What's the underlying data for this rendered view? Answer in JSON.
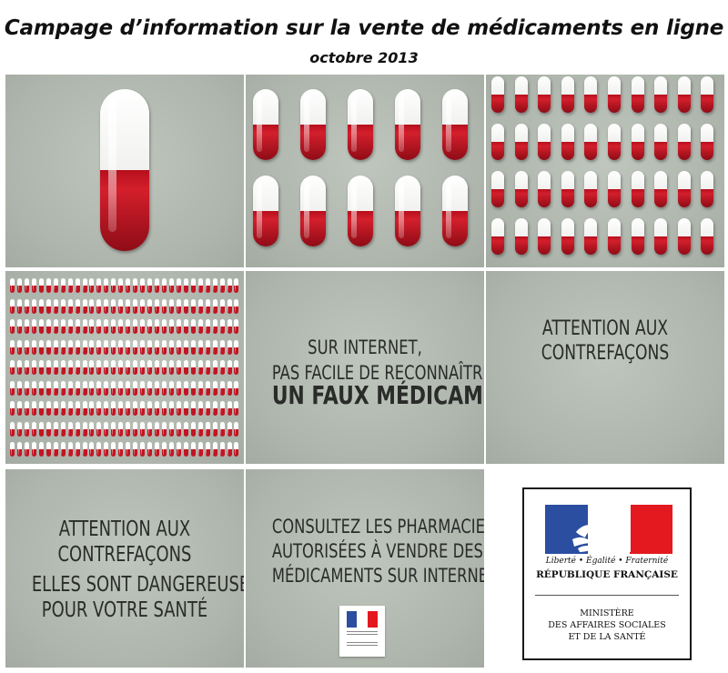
{
  "header": {
    "title": "Campage d’information sur la vente de médicaments en ligne",
    "subtitle": "octobre 2013"
  },
  "panels": {
    "faux_medicament": {
      "line1": "SUR INTERNET,",
      "line2": "PAS FACILE DE RECONNAÎTRE",
      "line3": "UN FAUX MÉDICAMENT"
    },
    "contrefacons": {
      "line1": "ATTENTION AUX",
      "line2": "CONTREFAÇONS"
    },
    "dangereuses": {
      "line1": "ATTENTION AUX",
      "line2": "CONTREFAÇONS",
      "line3": "ELLES SONT DANGEREUSES",
      "line4": "POUR VOTRE SANTÉ"
    },
    "pharmacies": {
      "line1": "CONSULTEZ LES PHARMACIES",
      "line2": "AUTORISÉES À VENDRE DES",
      "line3": "MÉDICAMENTS SUR INTERNET"
    }
  },
  "logo": {
    "motto": "Liberté • Égalité • Fraternité",
    "republic": "RÉPUBLIQUE FRANÇAISE",
    "ministry_line1": "MINISTÈRE",
    "ministry_line2": "DES AFFAIRES SOCIALES",
    "ministry_line3": "ET DE LA SANTÉ"
  },
  "colors": {
    "capsule_red": "#c21523",
    "panel_bg": "#b3bab1",
    "flag_blue": "#2b4ea0",
    "flag_red": "#e3191f"
  },
  "capsule_grids": {
    "panel2": {
      "cols": 5,
      "rows": 2
    },
    "panel3": {
      "cols": 10,
      "rows": 4
    },
    "panel4": {
      "cols": 32,
      "rows": 9
    }
  }
}
